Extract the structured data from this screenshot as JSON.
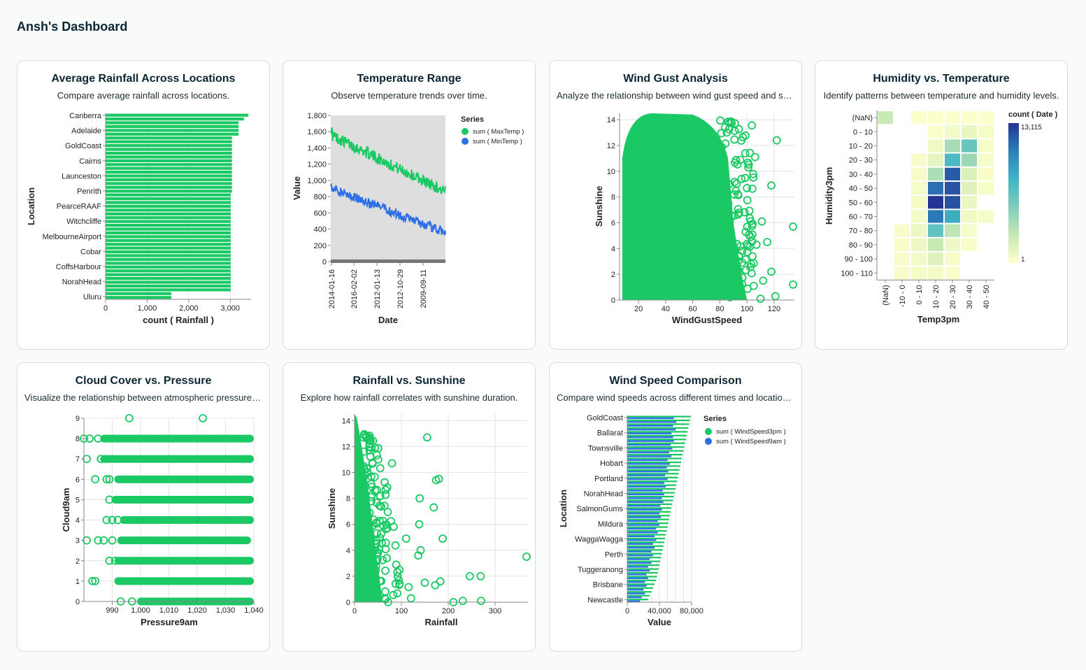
{
  "dashboard": {
    "title": "Ansh's Dashboard"
  },
  "colors": {
    "green": "#1bc964",
    "blue": "#2d6fe6",
    "grey_bg": "#dedede",
    "grid": "#e4e4e4",
    "axis": "#888888"
  },
  "cards": [
    {
      "title": "Average Rainfall Across Locations",
      "description": "Compare average rainfall across locations.",
      "chart_data": {
        "type": "bar",
        "orientation": "horizontal",
        "ylabel": "Location",
        "xlabel": "count ( Rainfall )",
        "xlim": [
          0,
          3500
        ],
        "xticks": [
          "0",
          "1,000",
          "2,000",
          "3,000"
        ],
        "labeled_categories": [
          "Canberra",
          "Adelaide",
          "GoldCoast",
          "Cairns",
          "Launceston",
          "Penrith",
          "PearceRAAF",
          "Witchcliffe",
          "MelbourneAirport",
          "Cobar",
          "CoffsHarbour",
          "NorahHead",
          "Uluru"
        ],
        "values": [
          3436,
          3330,
          3200,
          3200,
          3200,
          3200,
          3040,
          3040,
          3040,
          3040,
          3040,
          3040,
          3040,
          3040,
          3040,
          3040,
          3040,
          3040,
          3040,
          3040,
          3040,
          3010,
          3010,
          3010,
          3010,
          3010,
          3010,
          3010,
          3010,
          3010,
          3010,
          3010,
          3010,
          3010,
          3010,
          3010,
          3010,
          3010,
          3010,
          3010,
          3010,
          3010,
          3010,
          3010,
          3010,
          3010,
          3010,
          1580,
          1580
        ]
      }
    },
    {
      "title": "Temperature Range",
      "description": "Observe temperature trends over time.",
      "chart_data": {
        "type": "line",
        "xlabel": "Date",
        "ylabel": "Value",
        "ylim": [
          0,
          1800
        ],
        "yticks": [
          "0",
          "200",
          "400",
          "600",
          "800",
          "1,000",
          "1,200",
          "1,400",
          "1,600",
          "1,800"
        ],
        "xticks": [
          "2014-01-16",
          "2016-02-02",
          "2012-01-13",
          "2012-10-29",
          "2009-09-11"
        ],
        "legend_title": "Series",
        "series": [
          {
            "name": "sum ( MaxTemp )",
            "start": 1560,
            "end": 860,
            "noise": 70
          },
          {
            "name": "sum ( MinTemp )",
            "start": 900,
            "end": 360,
            "noise": 60
          }
        ]
      }
    },
    {
      "title": "Wind Gust Analysis",
      "description": "Analyze the relationship between wind gust speed and sunshine.",
      "chart_data": {
        "type": "scatter",
        "xlabel": "WindGustSpeed",
        "ylabel": "Sunshine",
        "xlim": [
          6,
          135
        ],
        "ylim": [
          0,
          14.5
        ],
        "xticks": [
          "20",
          "40",
          "60",
          "80",
          "100",
          "120"
        ],
        "yticks": [
          "0",
          "2",
          "4",
          "6",
          "8",
          "10",
          "12",
          "14"
        ],
        "outliers": [
          [
            122,
            12.4
          ],
          [
            118,
            8.9
          ],
          [
            111,
            6.1
          ],
          [
            107,
            4.3
          ],
          [
            104,
            3.4
          ],
          [
            112,
            1.5
          ],
          [
            134,
            5.7
          ],
          [
            103,
            2.8
          ],
          [
            106,
            11.1
          ],
          [
            99,
            5.3
          ],
          [
            105,
            1.1
          ],
          [
            96,
            9.4
          ],
          [
            101,
            10.3
          ],
          [
            121,
            0.3
          ],
          [
            118,
            2.2
          ],
          [
            115,
            4.5
          ],
          [
            134,
            1.2
          ],
          [
            110,
            0.1
          ]
        ]
      }
    },
    {
      "title": "Humidity vs. Temperature",
      "description": "Identify patterns between temperature and humidity levels.",
      "chart_data": {
        "type": "heatmap",
        "xlabel": "Temp3pm",
        "ylabel": "Humidity3pm",
        "x_categories": [
          "(NaN)",
          "-10 - 0",
          "0 - 10",
          "10 - 20",
          "20 - 30",
          "30 - 40",
          "40 - 50"
        ],
        "y_categories": [
          "(NaN)",
          "0 - 10",
          "10 - 20",
          "20 - 30",
          "30 - 40",
          "40 - 50",
          "50 - 60",
          "60 - 70",
          "70 - 80",
          "80 - 90",
          "90 - 100",
          "100 - 110"
        ],
        "legend_title": "count ( Date )",
        "legend_max": "13,115",
        "legend_min": "1",
        "values": [
          [
            2500,
            0,
            150,
            150,
            150,
            150,
            150
          ],
          [
            0,
            0,
            0,
            200,
            600,
            1100,
            400
          ],
          [
            0,
            0,
            0,
            700,
            3800,
            6200,
            400
          ],
          [
            0,
            0,
            300,
            1200,
            7400,
            4200,
            400
          ],
          [
            0,
            0,
            400,
            3600,
            11700,
            1700,
            300
          ],
          [
            0,
            0,
            400,
            11000,
            12000,
            1500,
            400
          ],
          [
            0,
            0,
            500,
            13115,
            12100,
            1000,
            0
          ],
          [
            0,
            0,
            500,
            10700,
            8300,
            700,
            400
          ],
          [
            0,
            300,
            900,
            6500,
            3000,
            400,
            0
          ],
          [
            0,
            300,
            900,
            2600,
            800,
            300,
            0
          ],
          [
            0,
            300,
            600,
            1500,
            300,
            0,
            0
          ],
          [
            0,
            300,
            400,
            500,
            200,
            0,
            0
          ]
        ]
      }
    },
    {
      "title": "Cloud Cover vs. Pressure",
      "description": "Visualize the relationship between atmospheric pressure and cloud cover.",
      "chart_data": {
        "type": "scatter",
        "xlabel": "Pressure9am",
        "ylabel": "Cloud9am",
        "xlim": [
          980,
          1040
        ],
        "ylim": [
          0,
          9
        ],
        "xticks": [
          "990",
          "1,000",
          "1,010",
          "1,020",
          "1,030",
          "1,040"
        ],
        "yticks": [
          "0",
          "1",
          "2",
          "3",
          "4",
          "5",
          "6",
          "7",
          "8",
          "9"
        ],
        "rows": [
          {
            "cloud": 0,
            "from": 1000,
            "to": 1040,
            "extra": [
              993,
              997
            ]
          },
          {
            "cloud": 1,
            "from": 992,
            "to": 1040,
            "extra": [
              983,
              984
            ]
          },
          {
            "cloud": 2,
            "from": 992,
            "to": 1040,
            "extra": [
              989,
              991
            ]
          },
          {
            "cloud": 3,
            "from": 993,
            "to": 1039,
            "extra": [
              981,
              985,
              987,
              990
            ]
          },
          {
            "cloud": 4,
            "from": 994,
            "to": 1040,
            "extra": [
              988,
              990,
              992
            ]
          },
          {
            "cloud": 5,
            "from": 991,
            "to": 1040,
            "extra": [
              989
            ]
          },
          {
            "cloud": 6,
            "from": 992,
            "to": 1040,
            "extra": [
              984,
              988,
              989
            ]
          },
          {
            "cloud": 7,
            "from": 987,
            "to": 1040,
            "extra": [
              981,
              986
            ]
          },
          {
            "cloud": 8,
            "from": 987,
            "to": 1040,
            "extra": [
              980,
              982,
              985
            ]
          },
          {
            "cloud": 9,
            "from": 0,
            "to": 0,
            "extra": [
              996,
              1022
            ]
          }
        ]
      }
    },
    {
      "title": "Rainfall vs. Sunshine",
      "description": "Explore how rainfall correlates with sunshine duration.",
      "chart_data": {
        "type": "scatter",
        "xlabel": "Rainfall",
        "ylabel": "Sunshine",
        "xlim": [
          0,
          370
        ],
        "ylim": [
          0,
          14.5
        ],
        "xticks": [
          "0",
          "100",
          "200",
          "300"
        ],
        "yticks": [
          "0",
          "2",
          "4",
          "6",
          "8",
          "10",
          "12",
          "14"
        ],
        "outliers": [
          [
            80,
            10.7
          ],
          [
            180,
            9.5
          ],
          [
            174,
            9.4
          ],
          [
            155,
            12.7
          ],
          [
            139,
            8.0
          ],
          [
            169,
            7.3
          ],
          [
            138,
            6.0
          ],
          [
            110,
            4.9
          ],
          [
            141,
            4.0
          ],
          [
            188,
            4.9
          ],
          [
            136,
            3.6
          ],
          [
            183,
            1.6
          ],
          [
            172,
            1.3
          ],
          [
            246,
            2.0
          ],
          [
            269,
            2.0
          ],
          [
            270,
            0.1
          ],
          [
            211,
            0.0
          ],
          [
            231,
            0.1
          ],
          [
            150,
            1.5
          ],
          [
            367,
            3.5
          ]
        ]
      }
    },
    {
      "title": "Wind Speed Comparison",
      "description": "Compare wind speeds across different times and locations.",
      "chart_data": {
        "type": "bar",
        "orientation": "horizontal",
        "ylabel": "Location",
        "xlabel": "Value",
        "xlim": [
          0,
          80000
        ],
        "xticks": [
          "0",
          "40,000",
          "80,000"
        ],
        "labeled_categories": [
          "GoldCoast",
          "Ballarat",
          "Townsville",
          "Hobart",
          "Portland",
          "NorahHead",
          "SalmonGums",
          "Mildura",
          "WaggaWagga",
          "Perth",
          "Tuggeranong",
          "Brisbane",
          "Newcastle"
        ],
        "legend_title": "Series",
        "series": [
          {
            "name": "sum ( WindSpeed3pm )",
            "values": [
              79000,
              78000,
              77000,
              76000,
              75000,
              74000,
              73000,
              72000,
              71000,
              70000,
              69000,
              68000,
              67000,
              66000,
              65000,
              64000,
              63000,
              62000,
              61000,
              60000,
              59000,
              58000,
              57000,
              56000,
              55000,
              54000,
              53000,
              52000,
              51000,
              50000,
              49000,
              48000,
              47000,
              46000,
              45000,
              44000,
              43000,
              42000,
              41000,
              40000,
              39000,
              38000,
              37000,
              36000,
              34000,
              32000,
              30000,
              28000,
              26000
            ]
          },
          {
            "name": "sum ( WindSpeed9am )",
            "values": [
              58000,
              61000,
              57000,
              60000,
              55000,
              57000,
              58000,
              54000,
              56000,
              52000,
              55000,
              50000,
              53000,
              49000,
              51000,
              47000,
              50000,
              46000,
              48000,
              44000,
              46000,
              43000,
              45000,
              41000,
              43000,
              40000,
              42000,
              38000,
              40000,
              36000,
              38000,
              34000,
              36000,
              32000,
              34000,
              30000,
              32000,
              28000,
              30000,
              26000,
              28000,
              24000,
              26000,
              22000,
              24000,
              20000,
              22000,
              18000,
              16000
            ]
          }
        ]
      }
    }
  ]
}
